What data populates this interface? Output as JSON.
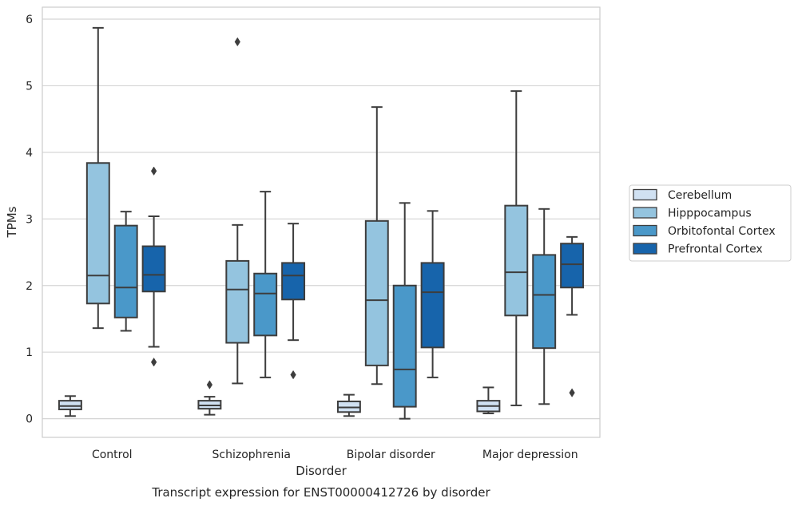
{
  "chart_data": {
    "type": "boxplot",
    "title": "",
    "caption": "Transcript expression for ENST00000412726 by disorder",
    "xlabel": "Disorder",
    "ylabel": "TPMs",
    "ylim": [
      -0.28,
      6.18
    ],
    "yticks": [
      0,
      1,
      2,
      3,
      4,
      5,
      6
    ],
    "grid": "horizontal",
    "legend_position": "right",
    "categories": [
      "Control",
      "Schizophrenia",
      "Bipolar disorder",
      "Major depression"
    ],
    "series": [
      {
        "name": "Cerebellum",
        "color": "#d0e1f2",
        "boxes": [
          {
            "whislo": 0.04,
            "q1": 0.14,
            "med": 0.19,
            "q3": 0.27,
            "whishi": 0.34,
            "fliers": []
          },
          {
            "whislo": 0.06,
            "q1": 0.15,
            "med": 0.2,
            "q3": 0.27,
            "whishi": 0.33,
            "fliers": [
              0.51
            ]
          },
          {
            "whislo": 0.04,
            "q1": 0.1,
            "med": 0.17,
            "q3": 0.26,
            "whishi": 0.36,
            "fliers": []
          },
          {
            "whislo": 0.08,
            "q1": 0.11,
            "med": 0.19,
            "q3": 0.27,
            "whishi": 0.47,
            "fliers": []
          }
        ]
      },
      {
        "name": "Hipppocampus",
        "color": "#94c4df",
        "boxes": [
          {
            "whislo": 1.36,
            "q1": 1.73,
            "med": 2.15,
            "q3": 3.84,
            "whishi": 5.87,
            "fliers": []
          },
          {
            "whislo": 0.53,
            "q1": 1.14,
            "med": 1.94,
            "q3": 2.37,
            "whishi": 2.91,
            "fliers": [
              5.66
            ]
          },
          {
            "whislo": 0.52,
            "q1": 0.8,
            "med": 1.78,
            "q3": 2.97,
            "whishi": 4.68,
            "fliers": []
          },
          {
            "whislo": 0.2,
            "q1": 1.55,
            "med": 2.2,
            "q3": 3.2,
            "whishi": 4.92,
            "fliers": []
          }
        ]
      },
      {
        "name": "Orbitofontal Cortex",
        "color": "#4a98c9",
        "boxes": [
          {
            "whislo": 1.32,
            "q1": 1.52,
            "med": 1.97,
            "q3": 2.9,
            "whishi": 3.11,
            "fliers": []
          },
          {
            "whislo": 0.62,
            "q1": 1.25,
            "med": 1.88,
            "q3": 2.18,
            "whishi": 3.41,
            "fliers": []
          },
          {
            "whislo": 0.0,
            "q1": 0.18,
            "med": 0.74,
            "q3": 2.0,
            "whishi": 3.24,
            "fliers": []
          },
          {
            "whislo": 0.22,
            "q1": 1.06,
            "med": 1.86,
            "q3": 2.46,
            "whishi": 3.15,
            "fliers": []
          }
        ]
      },
      {
        "name": "Prefrontal Cortex",
        "color": "#1764ab",
        "boxes": [
          {
            "whislo": 1.08,
            "q1": 1.91,
            "med": 2.16,
            "q3": 2.59,
            "whishi": 3.04,
            "fliers": [
              3.72,
              0.85
            ]
          },
          {
            "whislo": 1.18,
            "q1": 1.79,
            "med": 2.15,
            "q3": 2.34,
            "whishi": 2.93,
            "fliers": [
              0.66
            ]
          },
          {
            "whislo": 0.62,
            "q1": 1.07,
            "med": 1.9,
            "q3": 2.34,
            "whishi": 3.12,
            "fliers": []
          },
          {
            "whislo": 1.56,
            "q1": 1.97,
            "med": 2.32,
            "q3": 2.63,
            "whishi": 2.73,
            "fliers": [
              0.39
            ]
          }
        ]
      }
    ]
  }
}
